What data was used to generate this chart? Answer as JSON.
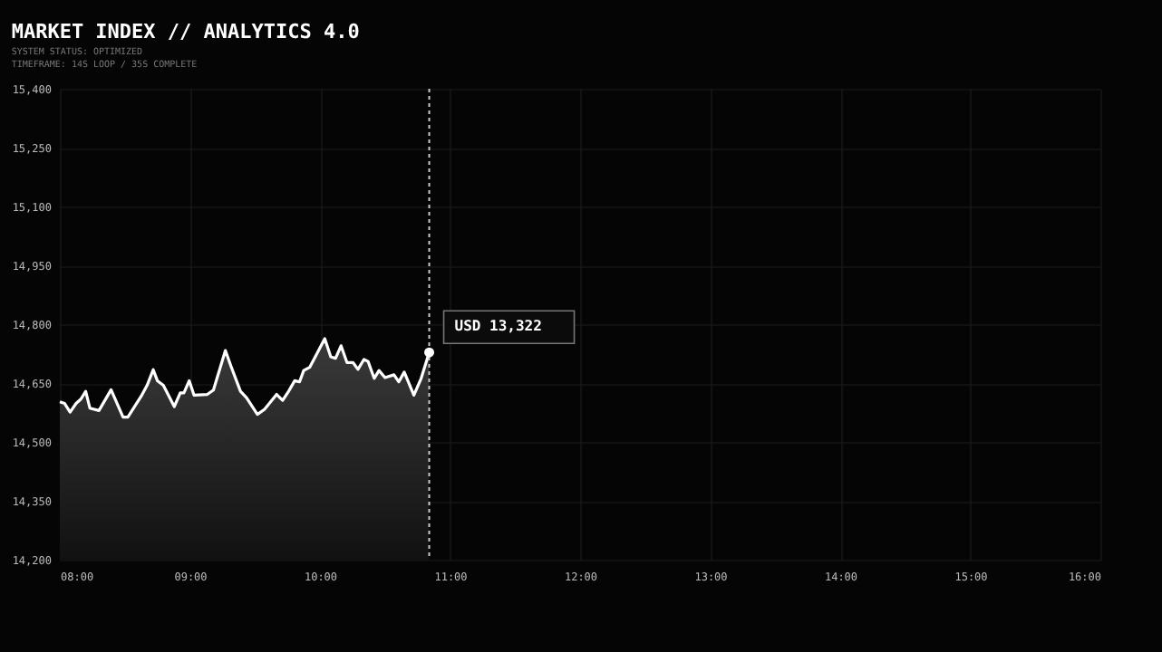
{
  "chart_data": {
    "type": "area",
    "title": "MARKET INDEX // ANALYTICS 4.0",
    "subtitle": [
      "SYSTEM STATUS: OPTIMIZED",
      "TIMEFRAME: 14S LOOP / 35S COMPLETE"
    ],
    "x": [
      8.0,
      8.037,
      8.079,
      8.125,
      8.162,
      8.199,
      8.231,
      8.301,
      8.394,
      8.486,
      8.523,
      8.625,
      8.671,
      8.718,
      8.75,
      8.796,
      8.88,
      8.926,
      8.954,
      8.995,
      9.032,
      9.134,
      9.181,
      9.273,
      9.319,
      9.389,
      9.435,
      9.519,
      9.574,
      9.667,
      9.713,
      9.759,
      9.806,
      9.843,
      9.875,
      9.921,
      10.037,
      10.083,
      10.12,
      10.162,
      10.208,
      10.255,
      10.292,
      10.338,
      10.37,
      10.417,
      10.454,
      10.5,
      10.569,
      10.606,
      10.648,
      10.722,
      10.778,
      10.84
    ],
    "series": [
      {
        "color": "#ffffff",
        "values": [
          14602,
          14598,
          14576,
          14598,
          14609,
          14629,
          14586,
          14580,
          14633,
          14563,
          14563,
          14616,
          14644,
          14684,
          14656,
          14644,
          14590,
          14625,
          14625,
          14656,
          14619,
          14621,
          14632,
          14733,
          14690,
          14629,
          14613,
          14570,
          14583,
          14621,
          14606,
          14629,
          14656,
          14653,
          14682,
          14690,
          14763,
          14717,
          14713,
          14745,
          14702,
          14702,
          14685,
          14710,
          14705,
          14662,
          14682,
          14664,
          14671,
          14653,
          14678,
          14619,
          14662,
          14728
        ]
      }
    ],
    "xlim": [
      8,
      16
    ],
    "xticks": [
      {
        "value": 8,
        "label": "08:00"
      },
      {
        "value": 9,
        "label": "09:00"
      },
      {
        "value": 10,
        "label": "10:00"
      },
      {
        "value": 11,
        "label": "11:00"
      },
      {
        "value": 12,
        "label": "12:00"
      },
      {
        "value": 13,
        "label": "13:00"
      },
      {
        "value": 14,
        "label": "14:00"
      },
      {
        "value": 15,
        "label": "15:00"
      },
      {
        "value": 16,
        "label": "16:00"
      }
    ],
    "ylim": [
      14200,
      15400
    ],
    "yticks": [
      {
        "value": 14200,
        "label": "14,200"
      },
      {
        "value": 14350,
        "label": "14,350"
      },
      {
        "value": 14500,
        "label": "14,500"
      },
      {
        "value": 14650,
        "label": "14,650"
      },
      {
        "value": 14800,
        "label": "14,800"
      },
      {
        "value": 14950,
        "label": "14,950"
      },
      {
        "value": 15100,
        "label": "15,100"
      },
      {
        "value": 15250,
        "label": "15,250"
      },
      {
        "value": 15400,
        "label": "15,400"
      }
    ],
    "grid": true,
    "marker": "none",
    "line_style": "solid",
    "ref_lines": [
      {
        "axis": "x",
        "value": 10.84,
        "color": "#cccccc",
        "line_style": "dotted"
      }
    ],
    "annotations": [
      {
        "text": "USD 13,322",
        "x": 10.84,
        "y": 14728
      }
    ]
  }
}
